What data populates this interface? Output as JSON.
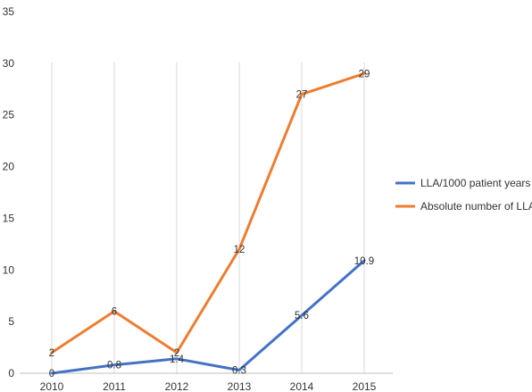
{
  "chart_data": {
    "type": "line",
    "title": "",
    "xlabel": "",
    "ylabel": "",
    "categories": [
      "2010",
      "2011",
      "2012",
      "2013",
      "2014",
      "2015"
    ],
    "ylim": [
      0,
      35
    ],
    "yticks": [
      "0",
      "5",
      "10",
      "15",
      "20",
      "25",
      "30",
      "35"
    ],
    "grid": "vertical",
    "legend_position": "right",
    "series": [
      {
        "name": "LLA/1000 patient years",
        "color": "#4472c4",
        "values": [
          0,
          0.8,
          1.4,
          0.3,
          5.6,
          10.9
        ],
        "labels": [
          "0",
          "0.8",
          "1.4",
          "0.3",
          "5.6",
          "10.9"
        ]
      },
      {
        "name": "Absolute number of LLA",
        "color": "#ed7d31",
        "values": [
          2,
          6,
          2,
          12,
          27,
          29
        ],
        "labels": [
          "2",
          "6",
          "2",
          "12",
          "27",
          "29"
        ]
      }
    ]
  }
}
